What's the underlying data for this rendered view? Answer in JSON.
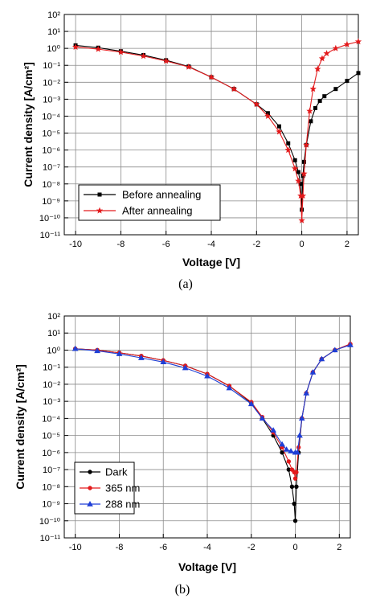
{
  "chart_data": [
    {
      "type": "scatter",
      "caption": "(a)",
      "xlabel": "Voltage [V]",
      "ylabel": "Current density [A/cm²]",
      "xlim": [
        -10.5,
        2.5
      ],
      "ylim_exp": [
        -11,
        2
      ],
      "y_scale": "log",
      "grid": true,
      "legend_position": "bottom-left",
      "x_ticks": [
        "-10",
        "-8",
        "-6",
        "-4",
        "-2",
        "0",
        "2"
      ],
      "y_ticks": [
        "10²",
        "10¹",
        "10⁰",
        "10⁻¹",
        "10⁻²",
        "10⁻³",
        "10⁻⁴",
        "10⁻⁵",
        "10⁻⁶",
        "10⁻⁷",
        "10⁻⁸",
        "10⁻⁹",
        "10⁻¹⁰",
        "10⁻¹¹"
      ],
      "series": [
        {
          "name": "Before annealing",
          "color": "#000000",
          "marker": "square",
          "x": [
            -10,
            -9,
            -8,
            -7,
            -6,
            -5,
            -4,
            -3,
            -2,
            -1.5,
            -1,
            -0.6,
            -0.3,
            -0.15,
            -0.05,
            0,
            0.05,
            0.1,
            0.2,
            0.4,
            0.6,
            0.8,
            1.0,
            1.5,
            2.0,
            2.5
          ],
          "y": [
            1.5,
            1.1,
            0.68,
            0.4,
            0.2,
            0.085,
            0.02,
            0.004,
            0.0005,
            0.00015,
            2.5e-05,
            2.5e-06,
            2.5e-07,
            5e-08,
            1e-08,
            3e-10,
            3e-08,
            2e-07,
            2e-06,
            5e-05,
            0.0003,
            0.0008,
            0.0015,
            0.004,
            0.012,
            0.035
          ]
        },
        {
          "name": "After  annealing",
          "color": "#e31a1c",
          "marker": "star",
          "x": [
            -10,
            -9,
            -8,
            -7,
            -6,
            -5,
            -4,
            -3,
            -2,
            -1.5,
            -1,
            -0.6,
            -0.3,
            -0.15,
            -0.05,
            0,
            0.05,
            0.1,
            0.2,
            0.35,
            0.5,
            0.7,
            0.9,
            1.1,
            1.5,
            2.0,
            2.5
          ],
          "y": [
            1.2,
            0.9,
            0.6,
            0.35,
            0.18,
            0.08,
            0.02,
            0.004,
            0.0005,
            0.0001,
            1.2e-05,
            1e-06,
            8e-08,
            1.5e-08,
            2e-09,
            7e-11,
            2e-09,
            4e-08,
            2e-06,
            0.0002,
            0.004,
            0.06,
            0.25,
            0.5,
            1.0,
            1.7,
            2.5
          ]
        }
      ]
    },
    {
      "type": "scatter",
      "caption": "(b)",
      "xlabel": "Voltage [V]",
      "ylabel": "Current density [A/cm²]",
      "xlim": [
        -10.5,
        2.5
      ],
      "ylim_exp": [
        -11,
        2
      ],
      "y_scale": "log",
      "grid": true,
      "legend_position": "bottom-left",
      "x_ticks": [
        "-10",
        "-8",
        "-6",
        "-4",
        "-2",
        "0",
        "2"
      ],
      "y_ticks": [
        "10²",
        "10¹",
        "10⁰",
        "10⁻¹",
        "10⁻²",
        "10⁻³",
        "10⁻⁴",
        "10⁻⁵",
        "10⁻⁶",
        "10⁻⁷",
        "10⁻⁸",
        "10⁻⁹",
        "10⁻¹⁰",
        "10⁻¹¹"
      ],
      "series": [
        {
          "name": "Dark",
          "color": "#000000",
          "marker": "circle",
          "x": [
            -10,
            -9,
            -8,
            -7,
            -6,
            -5,
            -4,
            -3,
            -2,
            -1.5,
            -1,
            -0.6,
            -0.3,
            -0.15,
            -0.05,
            0,
            0.05,
            0.15,
            0.3,
            0.5,
            0.8,
            1.2,
            1.8,
            2.5
          ],
          "y": [
            1.2,
            1.0,
            0.7,
            0.45,
            0.25,
            0.12,
            0.04,
            0.008,
            0.0008,
            0.0001,
            1e-05,
            1e-06,
            1e-07,
            1e-08,
            1e-09,
            1e-10,
            1e-08,
            1e-06,
            0.0001,
            0.003,
            0.05,
            0.3,
            1.0,
            2.2
          ]
        },
        {
          "name": "365 nm",
          "color": "#e31a1c",
          "marker": "circle",
          "x": [
            -10,
            -9,
            -8,
            -7,
            -6,
            -5,
            -4,
            -3,
            -2,
            -1.5,
            -1,
            -0.6,
            -0.3,
            -0.15,
            -0.05,
            0,
            0.05,
            0.15,
            0.3,
            0.5,
            0.8,
            1.2,
            1.8,
            2.5
          ],
          "y": [
            1.2,
            1.0,
            0.7,
            0.45,
            0.25,
            0.12,
            0.04,
            0.008,
            0.0009,
            0.00012,
            1.5e-05,
            2e-06,
            3e-07,
            1e-07,
            7e-08,
            3e-08,
            7e-08,
            2e-06,
            0.0001,
            0.003,
            0.05,
            0.3,
            1.0,
            2.3
          ]
        },
        {
          "name": "288 nm",
          "color": "#1f3fd6",
          "marker": "triangle",
          "x": [
            -10,
            -9,
            -8,
            -7,
            -6,
            -5,
            -4,
            -3,
            -2,
            -1.5,
            -1,
            -0.6,
            -0.4,
            -0.2,
            0,
            0.1,
            0.2,
            0.3,
            0.5,
            0.8,
            1.2,
            1.8,
            2.5
          ],
          "y": [
            1.2,
            0.9,
            0.6,
            0.35,
            0.2,
            0.09,
            0.03,
            0.006,
            0.0007,
            0.0001,
            2e-05,
            3e-06,
            1.5e-06,
            1.2e-06,
            1e-06,
            1e-06,
            1e-05,
            0.0001,
            0.003,
            0.05,
            0.3,
            1.0,
            2.0
          ]
        }
      ]
    }
  ]
}
